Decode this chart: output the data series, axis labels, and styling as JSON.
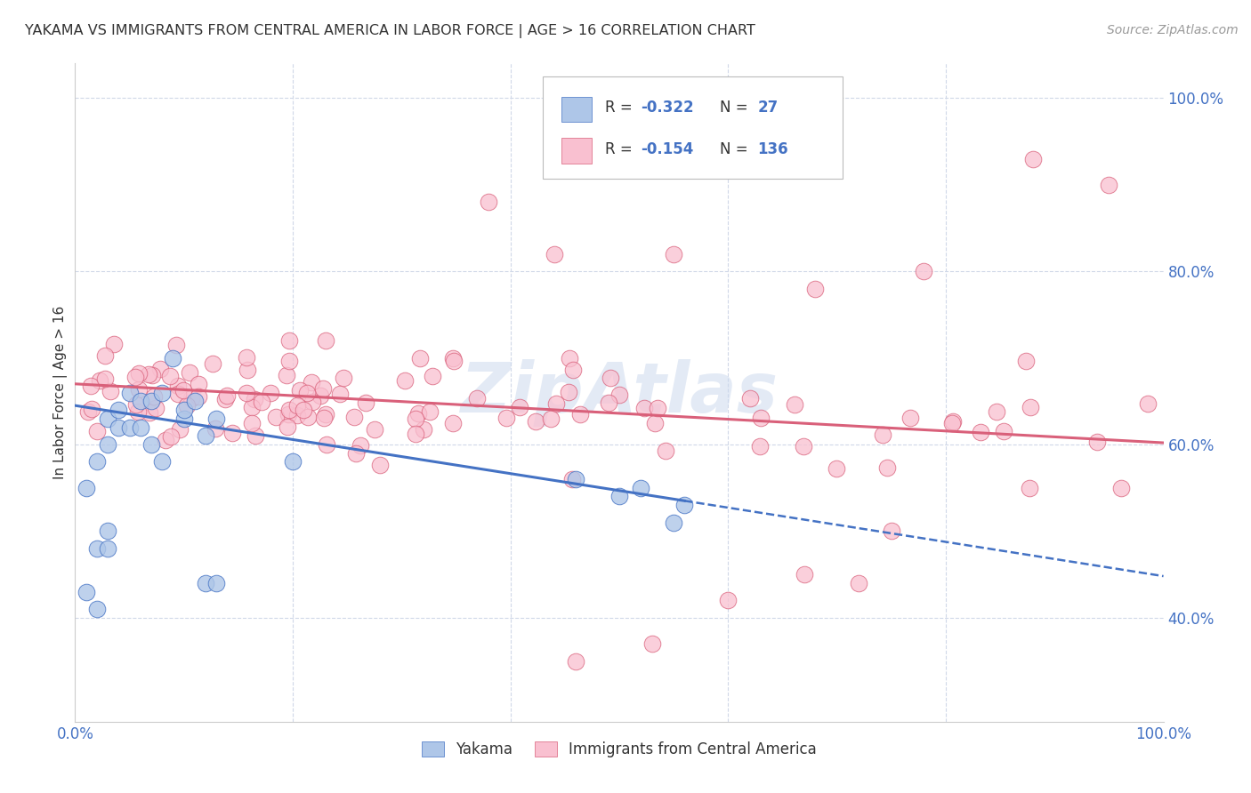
{
  "title": "YAKAMA VS IMMIGRANTS FROM CENTRAL AMERICA IN LABOR FORCE | AGE > 16 CORRELATION CHART",
  "source": "Source: ZipAtlas.com",
  "ylabel": "In Labor Force | Age > 16",
  "xlim": [
    0,
    1.0
  ],
  "ylim": [
    0.28,
    1.04
  ],
  "y_tick_vals_right": [
    0.4,
    0.6,
    0.8,
    1.0
  ],
  "legend_color1": "#aec6e8",
  "legend_color2": "#f9c0d0",
  "trendline_yakama_color": "#4472c4",
  "trendline_immigrants_color": "#d9607a",
  "yakama_color": "#aec6e8",
  "immigrants_color": "#f9c0d0",
  "background_color": "#ffffff",
  "grid_color": "#d0d8e8",
  "watermark": "ZipAtlas",
  "bottom_legend_items": [
    "Yakama",
    "Immigrants from Central America"
  ],
  "title_color": "#333333",
  "right_axis_color": "#4472c4",
  "yakama_trendline_x0": 0.0,
  "yakama_trendline_y0": 0.645,
  "yakama_trendline_x1": 0.56,
  "yakama_trendline_y1": 0.535,
  "yakama_trendline_dash_x0": 0.56,
  "yakama_trendline_dash_y0": 0.535,
  "yakama_trendline_dash_x1": 1.0,
  "yakama_trendline_dash_y1": 0.448,
  "immigrants_trendline_x0": 0.0,
  "immigrants_trendline_y0": 0.67,
  "immigrants_trendline_x1": 1.0,
  "immigrants_trendline_y1": 0.602
}
